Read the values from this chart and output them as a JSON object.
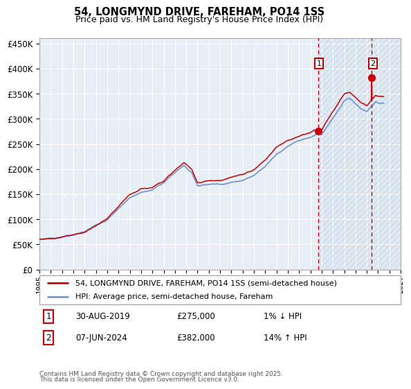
{
  "title": "54, LONGMYND DRIVE, FAREHAM, PO14 1SS",
  "subtitle": "Price paid vs. HM Land Registry's House Price Index (HPI)",
  "ylabel_ticks": [
    "£0",
    "£50K",
    "£100K",
    "£150K",
    "£200K",
    "£250K",
    "£300K",
    "£350K",
    "£400K",
    "£450K"
  ],
  "ytick_values": [
    0,
    50000,
    100000,
    150000,
    200000,
    250000,
    300000,
    350000,
    400000,
    450000
  ],
  "ylim": [
    0,
    460000
  ],
  "xlim_start": 1995,
  "xlim_end": 2027,
  "hpi_color": "#7799cc",
  "price_color": "#cc0000",
  "sale1_year": 2019.67,
  "sale1_value": 275000,
  "sale2_year": 2024.44,
  "sale2_value": 382000,
  "sale1_date": "30-AUG-2019",
  "sale1_price": "£275,000",
  "sale1_hpi": "1% ↓ HPI",
  "sale2_date": "07-JUN-2024",
  "sale2_price": "£382,000",
  "sale2_hpi": "14% ↑ HPI",
  "legend_line1": "54, LONGMYND DRIVE, FAREHAM, PO14 1SS (semi-detached house)",
  "legend_line2": "HPI: Average price, semi-detached house, Fareham",
  "footnote1": "Contains HM Land Registry data © Crown copyright and database right 2025.",
  "footnote2": "This data is licensed under the Open Government Licence v3.0.",
  "plot_bg_color": "#e8eef5",
  "future_bg_color": "#dde8f0",
  "background_color": "#ffffff",
  "grid_color": "#ffffff",
  "hatch_color": "#c8d8e8"
}
